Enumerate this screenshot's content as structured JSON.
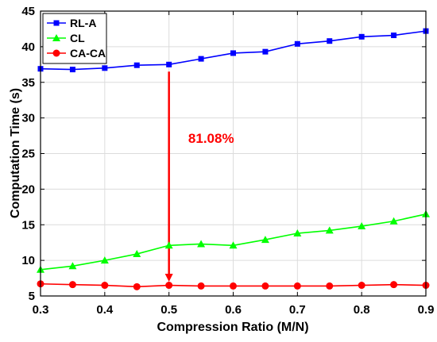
{
  "chart_data": {
    "type": "line",
    "xlabel": "Compression Ratio (M/N)",
    "ylabel": "Computation Time (s)",
    "xlim": [
      0.3,
      0.9
    ],
    "ylim": [
      5,
      45
    ],
    "xticks": [
      "0.3",
      "0.4",
      "0.5",
      "0.6",
      "0.7",
      "0.8",
      "0.9"
    ],
    "yticks": [
      "5",
      "10",
      "15",
      "20",
      "25",
      "30",
      "35",
      "40",
      "45"
    ],
    "grid": true,
    "legend_position": "top-left",
    "x": [
      0.3,
      0.35,
      0.4,
      0.45,
      0.5,
      0.55,
      0.6,
      0.65,
      0.7,
      0.75,
      0.8,
      0.85,
      0.9
    ],
    "series": [
      {
        "name": "RL-A",
        "color": "#0000ff",
        "marker": "square",
        "values": [
          36.9,
          36.8,
          37.0,
          37.4,
          37.5,
          38.3,
          39.1,
          39.3,
          40.4,
          40.8,
          41.4,
          41.6,
          42.2
        ]
      },
      {
        "name": "CL",
        "color": "#00ff00",
        "marker": "triangle",
        "values": [
          8.7,
          9.2,
          10.0,
          10.9,
          12.1,
          12.3,
          12.1,
          12.9,
          13.8,
          14.2,
          14.8,
          15.5,
          16.5
        ]
      },
      {
        "name": "CA-CA",
        "color": "#ff0000",
        "marker": "circle",
        "values": [
          6.7,
          6.6,
          6.5,
          6.3,
          6.5,
          6.4,
          6.4,
          6.4,
          6.4,
          6.4,
          6.5,
          6.6,
          6.5
        ]
      }
    ],
    "annotation": {
      "text": "81.08%",
      "color": "#ff0000",
      "arrow_x": 0.5,
      "arrow_from_y": 36.5,
      "arrow_to_y": 7.0,
      "text_x": 0.53,
      "text_y": 26.5
    }
  }
}
